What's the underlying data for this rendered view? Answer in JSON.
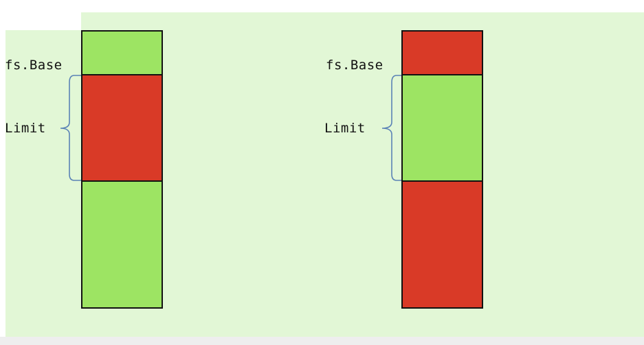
{
  "diagrams": [
    {
      "base_label": "fs.Base",
      "limit_label": "Limit",
      "segments": [
        "valid",
        "invalid",
        "valid"
      ]
    },
    {
      "base_label": "fs.Base",
      "limit_label": "Limit",
      "segments": [
        "invalid",
        "valid",
        "invalid"
      ]
    }
  ],
  "colors": {
    "valid": "#9de463",
    "invalid": "#d93a27",
    "background": "#e2f7d6",
    "brace": "#5a82b6"
  }
}
